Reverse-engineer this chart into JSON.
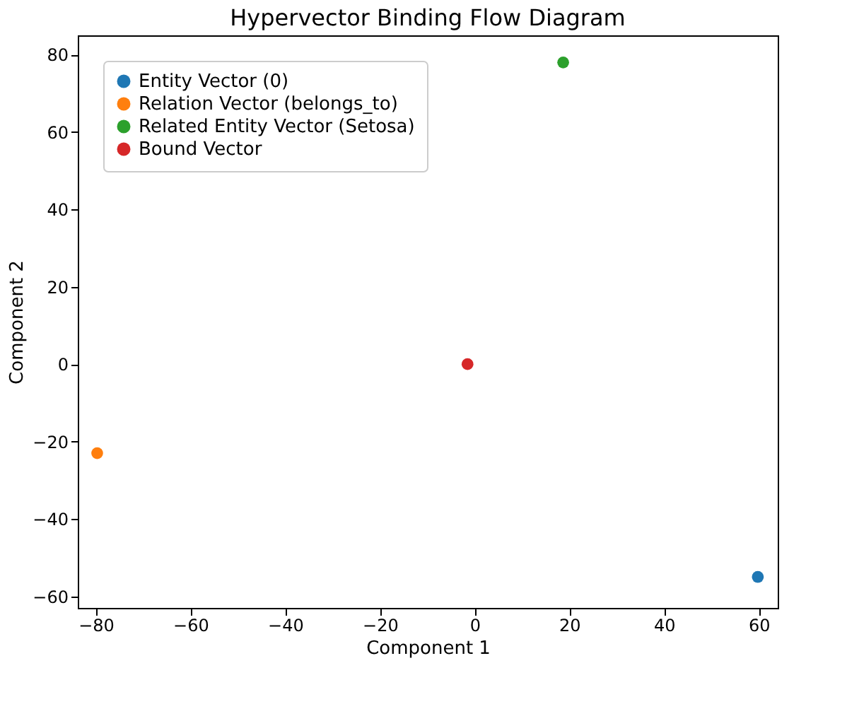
{
  "chart_data": {
    "type": "scatter",
    "title": "Hypervector Binding Flow Diagram",
    "xlabel": "Component 1",
    "ylabel": "Component 2",
    "series": [
      {
        "name": "Entity Vector (0)",
        "color": "#1f77b4",
        "x": [
          59.8
        ],
        "values": [
          -55
        ]
      },
      {
        "name": "Relation Vector (belongs_to)",
        "color": "#ff7f0e",
        "x": [
          -79.7
        ],
        "values": [
          -23
        ]
      },
      {
        "name": "Related Entity Vector (Setosa)",
        "color": "#2ca02c",
        "x": [
          18.7
        ],
        "values": [
          78
        ]
      },
      {
        "name": "Bound Vector",
        "color": "#d62728",
        "x": [
          -1.5
        ],
        "values": [
          0
        ]
      }
    ],
    "xlim": [
      -83.8,
      64
    ],
    "ylim": [
      -63,
      85
    ],
    "xticks": [
      -80,
      -60,
      -40,
      -20,
      0,
      20,
      40,
      60
    ],
    "yticks": [
      -60,
      -40,
      -20,
      0,
      20,
      40,
      60,
      80
    ],
    "legend": "top left",
    "grid": false,
    "marker": "circle"
  }
}
